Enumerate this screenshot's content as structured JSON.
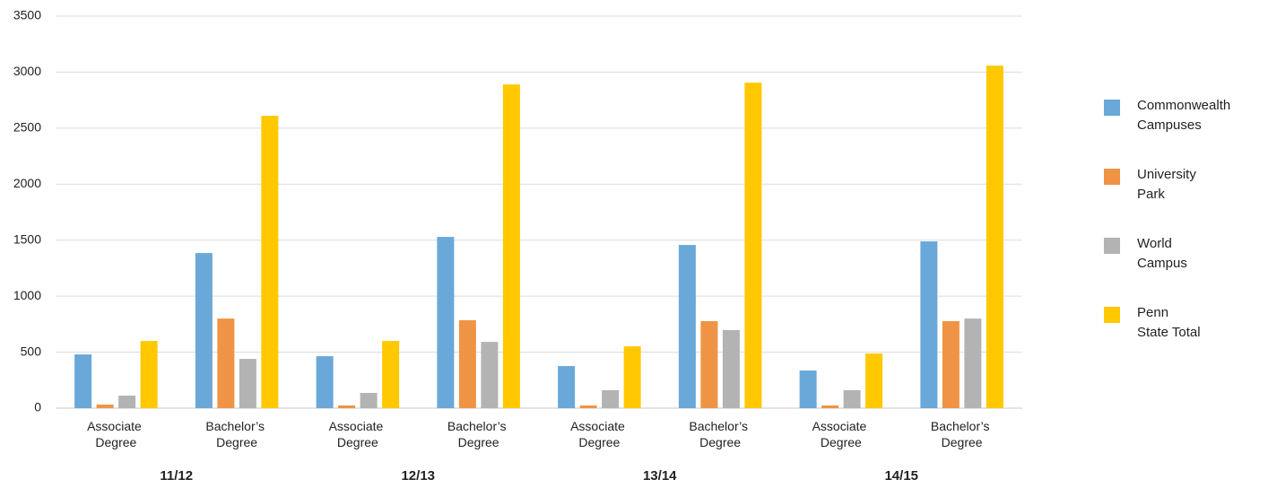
{
  "chart_data": {
    "type": "bar",
    "categories": [
      "Associate Degree",
      "Bachelor’s Degree",
      "Associate Degree",
      "Bachelor’s Degree",
      "Associate Degree",
      "Bachelor’s Degree",
      "Associate Degree",
      "Bachelor’s Degree"
    ],
    "groups": [
      "11/12",
      "12/13",
      "13/14",
      "14/15"
    ],
    "series": [
      {
        "name": "Commonwealth Campuses",
        "color": "#6aa8d9",
        "values": [
          480,
          1385,
          464,
          1529,
          376,
          1457,
          336,
          1489
        ]
      },
      {
        "name": "University Park",
        "color": "#ef9444",
        "values": [
          32,
          800,
          24,
          785,
          24,
          777,
          24,
          777
        ]
      },
      {
        "name": "World Campus",
        "color": "#b3b3b3",
        "values": [
          112,
          440,
          136,
          592,
          160,
          697,
          160,
          800
        ]
      },
      {
        "name": "Penn State Total",
        "color": "#ffc800",
        "values": [
          600,
          2610,
          600,
          2890,
          552,
          2906,
          488,
          3058
        ]
      }
    ],
    "ylim": [
      0,
      3500
    ],
    "yticks": [
      0,
      500,
      1000,
      1500,
      2000,
      2500,
      3000,
      3500
    ],
    "grid": true,
    "legend": "right"
  }
}
